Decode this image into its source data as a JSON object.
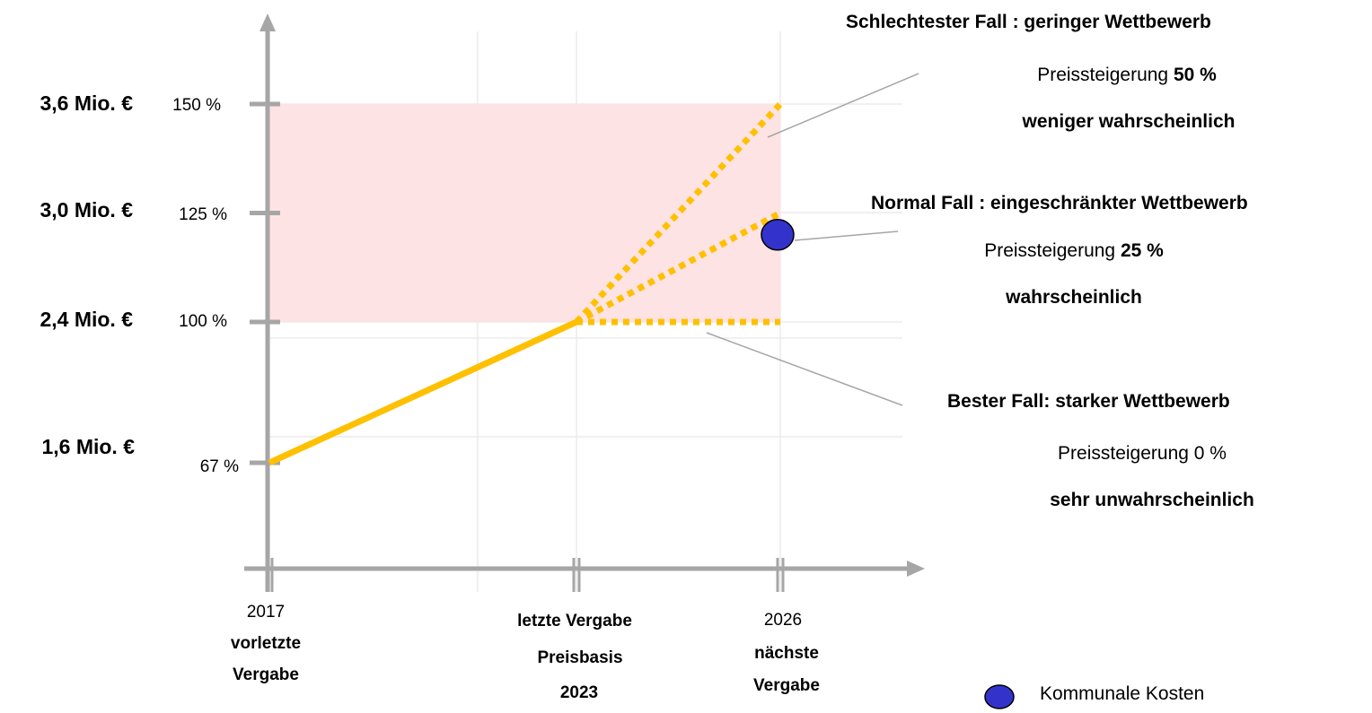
{
  "chart_data": {
    "type": "line",
    "y_euro_labels": [
      "3,6 Mio. €",
      "3,0 Mio. €",
      "2,4 Mio. €",
      "1,6 Mio. €"
    ],
    "y_percent_ticks": [
      {
        "value": 150,
        "label": "150 %"
      },
      {
        "value": 125,
        "label": "125 %"
      },
      {
        "value": 100,
        "label": "100 %"
      },
      {
        "value": 67,
        "label": "67 %"
      }
    ],
    "x_ticks": [
      {
        "x": 2017,
        "label_year": "2017",
        "label_lines": [
          "vorletzte",
          "Vergabe"
        ]
      },
      {
        "x": 2023,
        "label_lines": [
          "letzte Vergabe",
          "Preisbasis",
          "2023"
        ]
      },
      {
        "x": 2026,
        "label_year": "2026",
        "label_lines": [
          "nächste",
          "Vergabe"
        ]
      }
    ],
    "series": [
      {
        "style": "solid",
        "points": [
          [
            2017,
            67
          ],
          [
            2023,
            100
          ]
        ]
      },
      {
        "style": "dotted",
        "points": [
          [
            2023,
            100
          ],
          [
            2026,
            150
          ]
        ]
      },
      {
        "style": "dotted",
        "points": [
          [
            2023,
            100
          ],
          [
            2026,
            125
          ]
        ]
      },
      {
        "style": "dotted",
        "points": [
          [
            2023,
            100
          ],
          [
            2026,
            100
          ]
        ]
      }
    ],
    "shaded_band": {
      "from": 100,
      "to": 150
    },
    "kommunale_kosten_point": {
      "x": 2026,
      "y": 120
    },
    "line_color": "#ffc000",
    "band_color": "#fde3e3",
    "marker_color": "#3333cc"
  },
  "scenarios": {
    "worst": {
      "title": "Schlechtester Fall :  geringer Wettbewerb",
      "increase_prefix": "Preissteigerung ",
      "increase_value": "50 %",
      "likelihood": "weniger wahrscheinlich"
    },
    "normal": {
      "title": "Normal Fall :  eingeschränkter Wettbewerb",
      "increase_prefix": "Preissteigerung ",
      "increase_value": "25 %",
      "likelihood": "wahrscheinlich"
    },
    "best": {
      "title": "Bester Fall:  starker Wettbewerb",
      "increase_text": "Preissteigerung 0 %",
      "likelihood": "sehr unwahrscheinlich"
    }
  },
  "legend": {
    "label": "Kommunale Kosten"
  }
}
